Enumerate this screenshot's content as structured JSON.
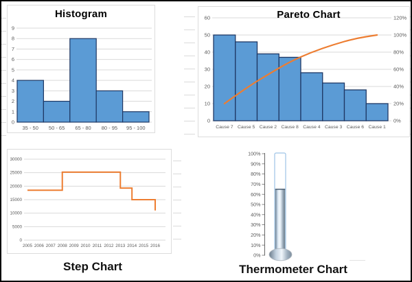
{
  "colors": {
    "bar_fill": "#5B9BD5",
    "bar_border": "#1F3864",
    "line_orange": "#ED7D31",
    "gridline": "#D9D9D9",
    "axis_text": "#595959",
    "title_text": "#000000",
    "thermo_tube_border": "#9DC3E6"
  },
  "captions": {
    "step": "Step Chart",
    "thermometer": "Thermometer Chart"
  },
  "chart_data": [
    {
      "id": "histogram",
      "type": "bar",
      "title": "Histogram",
      "categories": [
        "35 - 50",
        "50 - 65",
        "65 - 80",
        "80 - 95",
        "95 - 100"
      ],
      "values": [
        4,
        2,
        8,
        3,
        1
      ],
      "ylim": [
        0,
        9
      ],
      "y_ticks": [
        0,
        1,
        2,
        3,
        4,
        5,
        6,
        7,
        8,
        9
      ],
      "grid": true,
      "legend": "none",
      "bar_gap": 0
    },
    {
      "id": "pareto",
      "type": "bar+line",
      "title": "Pareto Chart",
      "categories": [
        "Cause 7",
        "Cause 5",
        "Cause 2",
        "Cause 8",
        "Cause 4",
        "Cause 3",
        "Cause 6",
        "Cause 1"
      ],
      "series": [
        {
          "name": "count",
          "type": "bar",
          "axis": "left",
          "values": [
            50,
            46,
            39,
            37,
            28,
            22,
            18,
            10
          ]
        },
        {
          "name": "cumulative-percent",
          "type": "line",
          "axis": "right",
          "smooth": true,
          "values": [
            20,
            38.4,
            54,
            68.8,
            80,
            88.8,
            96,
            100
          ]
        }
      ],
      "left_axis": {
        "lim": [
          0,
          60
        ],
        "ticks": [
          0,
          10,
          20,
          30,
          40,
          50,
          60
        ]
      },
      "right_axis": {
        "lim": [
          0,
          120
        ],
        "ticks": [
          0,
          20,
          40,
          60,
          80,
          100,
          120
        ],
        "tick_labels": [
          "0%",
          "20%",
          "40%",
          "60%",
          "80%",
          "100%",
          "120%"
        ]
      },
      "grid": true,
      "legend": "none"
    },
    {
      "id": "step",
      "type": "line",
      "subtype": "step-after",
      "title": "",
      "x_ticks": [
        "2005",
        "2006",
        "2007",
        "2008",
        "2009",
        "2010",
        "2011",
        "2012",
        "2013",
        "2014",
        "2015",
        "2016"
      ],
      "step_points": [
        [
          2005,
          18500
        ],
        [
          2008,
          25200
        ],
        [
          2013,
          19300
        ],
        [
          2014,
          15000
        ],
        [
          2016,
          11000
        ]
      ],
      "ylim": [
        0,
        30000
      ],
      "y_ticks": [
        0,
        5000,
        10000,
        15000,
        20000,
        25000,
        30000
      ],
      "y_tick_labels": [
        "0",
        "5000",
        "10000",
        "15000",
        "20000",
        "25000",
        "30000"
      ],
      "grid": true
    },
    {
      "id": "thermometer",
      "type": "thermometer",
      "value_percent": 65,
      "axis": {
        "lim": [
          0,
          100
        ],
        "tick_labels": [
          "0%",
          "10%",
          "20%",
          "30%",
          "40%",
          "50%",
          "60%",
          "70%",
          "80%",
          "90%",
          "100%"
        ]
      }
    }
  ]
}
